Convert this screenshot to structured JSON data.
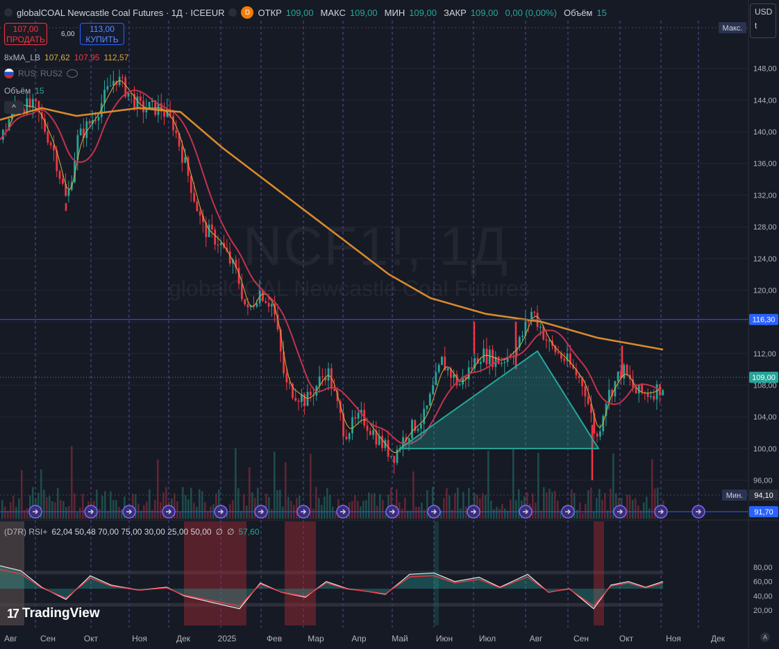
{
  "header": {
    "title": "globalCOAL Newcastle Coal Futures · 1Д · ICEEUR",
    "badge": "D",
    "ohlc": [
      {
        "label": "ОТКР",
        "value": "109,00"
      },
      {
        "label": "МАКС",
        "value": "109,00"
      },
      {
        "label": "МИН",
        "value": "109,00"
      },
      {
        "label": "ЗАКР",
        "value": "109,00"
      }
    ],
    "change": "0,00 (0,00%)",
    "volume_label": "Объём",
    "volume_value": "15"
  },
  "trade": {
    "sell_price": "107,00",
    "sell_label": "ПРОДАТЬ",
    "spread": "6,00",
    "buy_price": "113,00",
    "buy_label": "КУПИТЬ"
  },
  "indicators": {
    "ma_name": "8xMA_LB",
    "ma_values": [
      "107,62",
      "107,95",
      "112,57"
    ],
    "rus_label": "RUS: RUS2",
    "volume_label": "Объём",
    "volume_value": "15",
    "collapse": "^"
  },
  "rsi": {
    "label": "(D7R) RSI+",
    "params": "62,04 50,48 70,00 75,00 30,00 25,00 50,00",
    "sym1": "∅",
    "sym2": "∅",
    "last": "57,60",
    "axis_labels": [
      "80,00",
      "60,00",
      "40,00",
      "20,00"
    ]
  },
  "currency": {
    "value": "USD",
    "unit": "t"
  },
  "watermark": {
    "symbol": "NCF1!, 1Д",
    "name": "globalCOAL Newcastle Coal Futures"
  },
  "price_axis": {
    "labels": [
      "148,00",
      "144,00",
      "140,00",
      "136,00",
      "132,00",
      "128,00",
      "124,00",
      "120,00",
      "116,00",
      "112,00",
      "108,00",
      "104,00",
      "100,00",
      "96,00"
    ],
    "max_label": "Макс.",
    "min_label": "Мин.",
    "min_value": "94,10",
    "last_value": "109,00",
    "hline_value": "116,30",
    "low_marker": "91,70"
  },
  "time_axis": [
    "Авг",
    "Сен",
    "Окт",
    "Ноя",
    "Дек",
    "2025",
    "Фев",
    "Мар",
    "Апр",
    "Май",
    "Июн",
    "Июл",
    "Авг",
    "Сен",
    "Окт",
    "Ноя",
    "Дек"
  ],
  "branding": {
    "logo": "TradingView",
    "auto": "A"
  },
  "colors": {
    "up": "#26a69a",
    "down": "#f23645",
    "ma_fast": "#d4b23a",
    "ma_mid": "#c2334e",
    "ma_slow": "#d98b2b",
    "triangle": "#26a69a",
    "hline": "#2962ff",
    "grid": "#6a5acd"
  },
  "chart_data": {
    "type": "candlestick",
    "price_range": [
      94.1,
      149.0
    ],
    "months": [
      "Авг",
      "Сен",
      "Окт",
      "Ноя",
      "Дек",
      "2025",
      "Фев",
      "Мар",
      "Апр",
      "Май",
      "Июн",
      "Июл",
      "Авг",
      "Сен",
      "Окт"
    ],
    "close_approx_by_month": [
      143,
      138,
      142,
      145,
      142,
      128,
      117,
      106,
      101,
      101,
      109,
      110,
      116,
      108,
      109
    ],
    "ma_slow_approx_by_month": [
      143,
      143,
      143,
      143,
      143,
      139,
      132,
      125,
      120,
      118,
      117,
      116.5,
      116,
      114,
      112.6
    ],
    "ma_mid_approx_by_month": [
      136,
      142,
      143,
      144,
      143,
      136,
      124,
      113,
      108,
      104,
      106,
      109,
      111,
      110,
      108
    ],
    "triangle_points": [
      [
        100.0,
        "Май"
      ],
      [
        112.3,
        "Авг"
      ],
      [
        100.0,
        "Сен"
      ]
    ],
    "annotations": [
      "116,30",
      "109,00",
      "94,10",
      "91,70"
    ],
    "rsi_levels": [
      70,
      50,
      30
    ],
    "rsi_range": [
      10,
      95
    ]
  }
}
